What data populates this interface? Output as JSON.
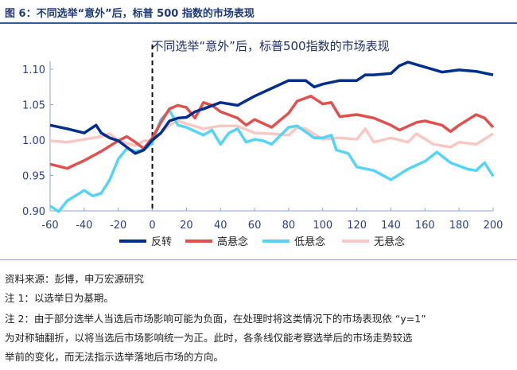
{
  "header": {
    "figure_label": "图 6：不同选举“意外”后，标普 500 指数的市场表现"
  },
  "chart_data": {
    "type": "line",
    "title": "不同选举“意外”后，标普500指数的市场表现",
    "xlabel": "",
    "ylabel": "",
    "xlim": [
      -60,
      200
    ],
    "ylim": [
      0.9,
      1.1
    ],
    "xticks": [
      "-60",
      "-40",
      "-20",
      "0",
      "20",
      "40",
      "60",
      "80",
      "100",
      "120",
      "140",
      "160",
      "180",
      "200"
    ],
    "yticks": [
      "1.10",
      "1.05",
      "1.00",
      "0.95",
      "0.90"
    ],
    "vline_x": 0,
    "legend_position": "bottom",
    "grid": false,
    "series": [
      {
        "name": "反转",
        "color": "#002e8c",
        "points": [
          [
            -60,
            1.021
          ],
          [
            -50,
            1.016
          ],
          [
            -40,
            1.01
          ],
          [
            -33,
            1.021
          ],
          [
            -30,
            1.01
          ],
          [
            -25,
            1.003
          ],
          [
            -20,
            0.999
          ],
          [
            -10,
            0.981
          ],
          [
            -5,
            0.986
          ],
          [
            0,
            1.0
          ],
          [
            5,
            1.01
          ],
          [
            10,
            1.027
          ],
          [
            15,
            1.031
          ],
          [
            20,
            1.032
          ],
          [
            25,
            1.04
          ],
          [
            30,
            1.044
          ],
          [
            40,
            1.053
          ],
          [
            50,
            1.049
          ],
          [
            60,
            1.062
          ],
          [
            70,
            1.073
          ],
          [
            80,
            1.084
          ],
          [
            90,
            1.084
          ],
          [
            95,
            1.075
          ],
          [
            100,
            1.079
          ],
          [
            110,
            1.084
          ],
          [
            120,
            1.084
          ],
          [
            125,
            1.092
          ],
          [
            130,
            1.092
          ],
          [
            140,
            1.094
          ],
          [
            145,
            1.105
          ],
          [
            150,
            1.11
          ],
          [
            160,
            1.103
          ],
          [
            170,
            1.096
          ],
          [
            180,
            1.099
          ],
          [
            190,
            1.097
          ],
          [
            200,
            1.092
          ]
        ]
      },
      {
        "name": "高悬念",
        "color": "#e0514e",
        "points": [
          [
            -60,
            0.966
          ],
          [
            -50,
            0.96
          ],
          [
            -40,
            0.971
          ],
          [
            -30,
            0.984
          ],
          [
            -20,
            0.999
          ],
          [
            -15,
            1.005
          ],
          [
            -10,
            0.997
          ],
          [
            -5,
            0.988
          ],
          [
            0,
            1.003
          ],
          [
            5,
            1.025
          ],
          [
            10,
            1.044
          ],
          [
            15,
            1.049
          ],
          [
            20,
            1.046
          ],
          [
            25,
            1.031
          ],
          [
            30,
            1.053
          ],
          [
            35,
            1.049
          ],
          [
            40,
            1.04
          ],
          [
            50,
            1.031
          ],
          [
            55,
            1.021
          ],
          [
            60,
            1.029
          ],
          [
            70,
            1.018
          ],
          [
            80,
            1.038
          ],
          [
            85,
            1.055
          ],
          [
            93,
            1.062
          ],
          [
            100,
            1.051
          ],
          [
            105,
            1.053
          ],
          [
            110,
            1.033
          ],
          [
            120,
            1.036
          ],
          [
            130,
            1.031
          ],
          [
            140,
            1.021
          ],
          [
            145,
            1.014
          ],
          [
            155,
            1.025
          ],
          [
            160,
            1.027
          ],
          [
            170,
            1.021
          ],
          [
            175,
            1.012
          ],
          [
            180,
            1.021
          ],
          [
            190,
            1.036
          ],
          [
            195,
            1.031
          ],
          [
            200,
            1.018
          ]
        ]
      },
      {
        "name": "低悬念",
        "color": "#55d4f7",
        "points": [
          [
            -60,
            0.907
          ],
          [
            -55,
            0.899
          ],
          [
            -50,
            0.914
          ],
          [
            -40,
            0.929
          ],
          [
            -35,
            0.921
          ],
          [
            -30,
            0.925
          ],
          [
            -25,
            0.944
          ],
          [
            -20,
            0.973
          ],
          [
            -15,
            0.988
          ],
          [
            -10,
            0.984
          ],
          [
            -5,
            0.986
          ],
          [
            0,
            0.996
          ],
          [
            5,
            1.029
          ],
          [
            10,
            1.042
          ],
          [
            15,
            1.021
          ],
          [
            20,
            1.018
          ],
          [
            30,
            1.007
          ],
          [
            35,
            1.014
          ],
          [
            40,
            0.994
          ],
          [
            45,
            1.01
          ],
          [
            50,
            1.016
          ],
          [
            55,
            0.997
          ],
          [
            60,
            1.001
          ],
          [
            65,
            0.999
          ],
          [
            70,
            0.994
          ],
          [
            80,
            1.018
          ],
          [
            85,
            1.02
          ],
          [
            95,
            1.003
          ],
          [
            100,
            1.003
          ],
          [
            105,
            1.007
          ],
          [
            108,
            0.986
          ],
          [
            115,
            0.981
          ],
          [
            120,
            0.962
          ],
          [
            130,
            0.957
          ],
          [
            140,
            0.944
          ],
          [
            150,
            0.959
          ],
          [
            160,
            0.97
          ],
          [
            167,
            0.983
          ],
          [
            175,
            0.968
          ],
          [
            185,
            0.959
          ],
          [
            190,
            0.957
          ],
          [
            195,
            0.968
          ],
          [
            200,
            0.949
          ]
        ]
      },
      {
        "name": "无悬念",
        "color": "#f8c8c4",
        "points": [
          [
            -60,
            0.999
          ],
          [
            -50,
            0.997
          ],
          [
            -40,
            1.001
          ],
          [
            -30,
            1.005
          ],
          [
            -25,
            1.009
          ],
          [
            -20,
            0.999
          ],
          [
            -10,
            0.992
          ],
          [
            -5,
            0.999
          ],
          [
            0,
            0.999
          ],
          [
            10,
            1.021
          ],
          [
            15,
            1.027
          ],
          [
            20,
            1.023
          ],
          [
            30,
            1.016
          ],
          [
            40,
            1.02
          ],
          [
            50,
            1.02
          ],
          [
            60,
            1.01
          ],
          [
            70,
            1.009
          ],
          [
            80,
            1.007
          ],
          [
            85,
            1.018
          ],
          [
            90,
            1.016
          ],
          [
            100,
            1.001
          ],
          [
            110,
            1.003
          ],
          [
            120,
            1.001
          ],
          [
            125,
            1.016
          ],
          [
            130,
            0.997
          ],
          [
            140,
            1.003
          ],
          [
            150,
            0.997
          ],
          [
            155,
            1.009
          ],
          [
            165,
            0.994
          ],
          [
            175,
            0.99
          ],
          [
            180,
            0.997
          ],
          [
            190,
            0.994
          ],
          [
            200,
            1.009
          ]
        ]
      }
    ]
  },
  "notes": {
    "source": "资料来源：彭博，申万宏源研究",
    "note1": "注 1：以选举日为基期。",
    "note2_line1": "注 2：由于部分选举人当选后市场影响可能为负面，在处理时将这类情况下的市场表现依 “y=1”",
    "note2_line2": "为对称轴翻折，以将当选后市场影响统一为正。此时，各条线仅能考察选举后的市场走势较选",
    "note2_line3": "举前的变化，而无法指示选举落地后市场的方向。"
  }
}
